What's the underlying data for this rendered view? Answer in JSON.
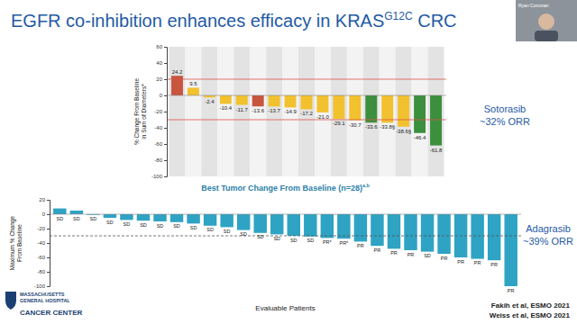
{
  "slide": {
    "title": [
      "EGFR co-inhibition enhances efficacy in KRAS",
      "G12C",
      " CRC"
    ],
    "side_labels": [
      [
        "Sotorasib",
        "~32% ORR"
      ],
      [
        "Adagrasib",
        "~39% ORR"
      ]
    ],
    "citations": [
      "Fakih et al, ESMO 2021",
      "Weiss et al, ESMO 2021"
    ],
    "logo": [
      "MASSACHUSETTS",
      "GENERAL HOSPITAL",
      "CANCER CENTER"
    ],
    "speaker": "Ryan Corcoran"
  },
  "chart_data": [
    {
      "type": "bar",
      "ylabel": "% Change From Baseline in Sum of Diameters*",
      "values": [
        24.2,
        9.5,
        -2.4,
        -10.4,
        -11.7,
        -13.6,
        -13.7,
        -14.9,
        -17.2,
        -21.0,
        -29.1,
        -30.7,
        -33.6,
        -33.8,
        -38.6,
        -46.4,
        -61.8
      ],
      "value_labels": [
        "24.2",
        "9.5",
        "-2.4",
        "-10.4",
        "-11.7",
        "-13.6",
        "-13.7",
        "-14.9",
        "-17.2",
        "-21.0",
        "-29.1",
        "-30.7",
        "-33.6",
        "-33.8§",
        "-38.6§",
        "-46.4",
        "-61.8"
      ],
      "colors": [
        "#c8553d",
        "#f2c12e",
        "#f2c12e",
        "#f2c12e",
        "#f2c12e",
        "#c8553d",
        "#f2c12e",
        "#f2c12e",
        "#f2c12e",
        "#f2c12e",
        "#f2c12e",
        "#f2c12e",
        "#3c8f3c",
        "#f2c12e",
        "#f2c12e",
        "#3c8f3c",
        "#3c8f3c"
      ],
      "reference_lines": [
        20,
        -30
      ],
      "ylim": [
        -100,
        60
      ],
      "yticks": [
        60,
        40,
        20,
        0,
        -20,
        -40,
        -60,
        -80,
        -100
      ],
      "data_labels": true,
      "tick_labels": "y",
      "grid": false
    },
    {
      "type": "bar",
      "title": [
        "Best Tumor Change From Baseline (n=28)",
        "a,b"
      ],
      "xlabel": "Evaluable Patients",
      "ylabel": "Maximum % Change From Baseline",
      "values": [
        8,
        5,
        -1,
        -5,
        -8,
        -9,
        -10,
        -11,
        -13,
        -16,
        -18,
        -22,
        -26,
        -28,
        -30,
        -31,
        -33,
        -34,
        -38,
        -44,
        -48,
        -50,
        -52,
        -55,
        -60,
        -62,
        -64,
        -100
      ],
      "annotations": [
        "SD",
        "SD",
        "SD",
        "SD",
        "SD",
        "SD",
        "SD",
        "SD",
        "SD",
        "SD",
        "SD",
        "SD",
        "SD",
        "SD",
        "SD",
        "SD",
        "PR*",
        "PR*",
        "PR",
        "PR",
        "PR",
        "PR",
        "SD",
        "PR",
        "PR",
        "PR",
        "PR",
        "PR"
      ],
      "color": "#2ea3c3",
      "reference_lines": [
        -30
      ],
      "ylim": [
        -100,
        20
      ],
      "yticks": [
        20,
        0,
        -20,
        -40,
        -60,
        -80,
        -100
      ],
      "data_labels": false,
      "tick_labels": "y",
      "grid": false
    }
  ]
}
